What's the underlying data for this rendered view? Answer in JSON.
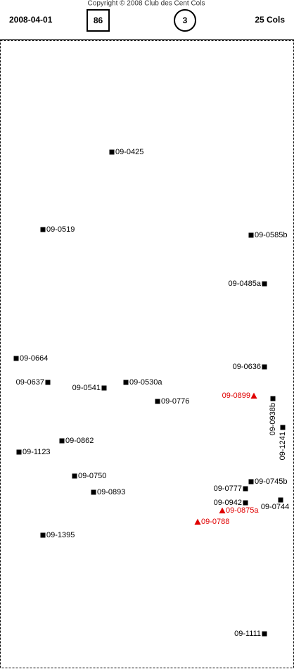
{
  "header": {
    "copyright": "Copyright © 2008 Club des Cent Cols",
    "date": "2008-04-01",
    "boxed": "86",
    "circled": "3",
    "count": "25 Cols"
  },
  "cols": [
    {
      "label": "09-0425",
      "symbol": "square",
      "color": "#000000"
    },
    {
      "label": "09-0519",
      "symbol": "square",
      "color": "#000000"
    },
    {
      "label": "09-0585b",
      "symbol": "square",
      "color": "#000000"
    },
    {
      "label": "09-0485a",
      "symbol": "square",
      "color": "#000000"
    },
    {
      "label": "09-0664",
      "symbol": "square",
      "color": "#000000"
    },
    {
      "label": "09-0636",
      "symbol": "square",
      "color": "#000000"
    },
    {
      "label": "09-0637",
      "symbol": "square",
      "color": "#000000"
    },
    {
      "label": "09-0541",
      "symbol": "square",
      "color": "#000000"
    },
    {
      "label": "09-0530a",
      "symbol": "square",
      "color": "#000000"
    },
    {
      "label": "09-0776",
      "symbol": "square",
      "color": "#000000"
    },
    {
      "label": "09-0899",
      "symbol": "triangle",
      "color": "#e00000"
    },
    {
      "label": "09-0938b",
      "symbol": "square",
      "color": "#000000"
    },
    {
      "label": "09-1241",
      "symbol": "square",
      "color": "#000000"
    },
    {
      "label": "09-0862",
      "symbol": "square",
      "color": "#000000"
    },
    {
      "label": "09-1123",
      "symbol": "square",
      "color": "#000000"
    },
    {
      "label": "09-0750",
      "symbol": "square",
      "color": "#000000"
    },
    {
      "label": "09-0745b",
      "symbol": "square",
      "color": "#000000"
    },
    {
      "label": "09-0777",
      "symbol": "square",
      "color": "#000000"
    },
    {
      "label": "09-0893",
      "symbol": "square",
      "color": "#000000"
    },
    {
      "label": "09-0744",
      "symbol": "square",
      "color": "#000000"
    },
    {
      "label": "09-0942",
      "symbol": "square",
      "color": "#000000"
    },
    {
      "label": "09-0875a",
      "symbol": "triangle",
      "color": "#e00000"
    },
    {
      "label": "09-0788",
      "symbol": "triangle",
      "color": "#e00000"
    },
    {
      "label": "09-1395",
      "symbol": "square",
      "color": "#000000"
    },
    {
      "label": "09-1111",
      "symbol": "square",
      "color": "#000000"
    }
  ]
}
